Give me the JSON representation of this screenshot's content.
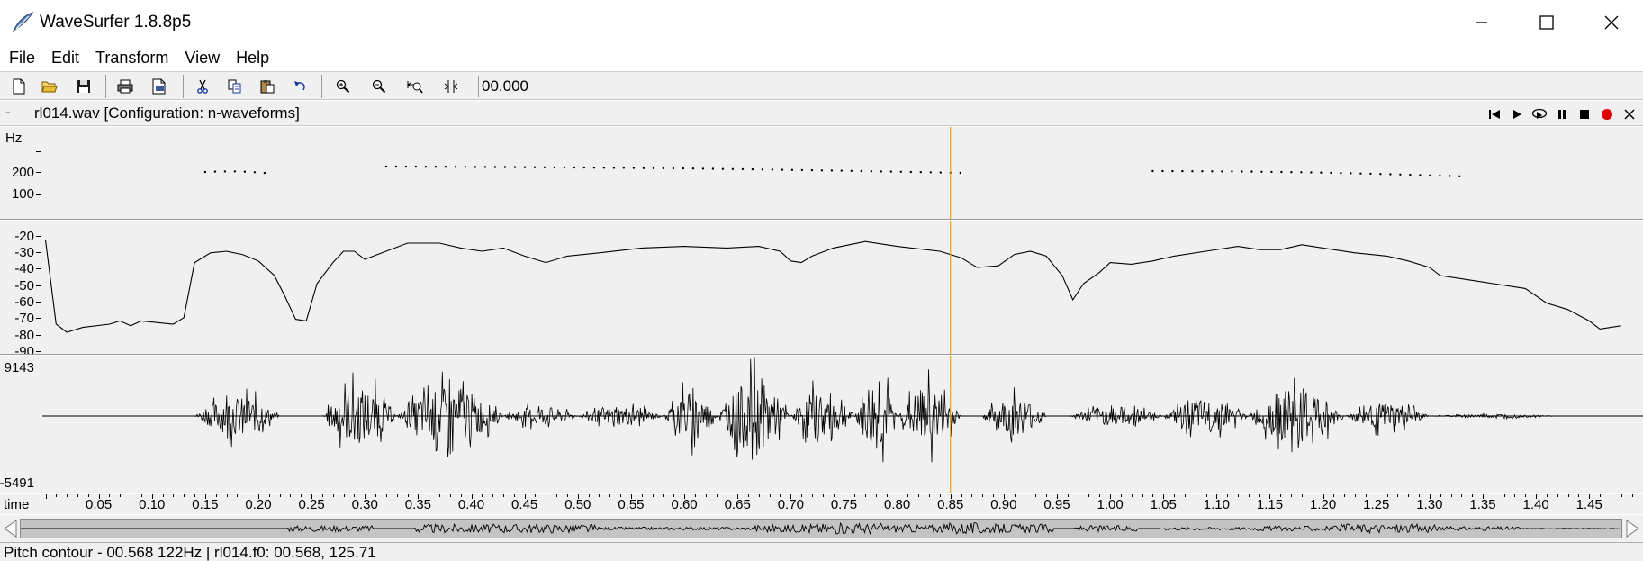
{
  "window": {
    "title": "WaveSurfer 1.8.8p5",
    "minimize_label": "",
    "maximize_label": "",
    "close_label": ""
  },
  "menu": [
    "File",
    "Edit",
    "Transform",
    "View",
    "Help"
  ],
  "toolbar": {
    "time_value": "00.000",
    "buttons": [
      "new-file",
      "open-folder",
      "save",
      "print",
      "print-setup",
      "cut",
      "copy",
      "paste",
      "undo",
      "zoom-in",
      "zoom-out",
      "zoom-to-selection",
      "zoom-all"
    ]
  },
  "file_header": {
    "collapse": "-",
    "title": "rl014.wav [Configuration: n-waveforms]",
    "transport": [
      "skip-to-start",
      "play",
      "play-loop",
      "pause",
      "stop",
      "record",
      "close"
    ]
  },
  "pitch_pane": {
    "unit": "Hz",
    "ticks": [
      "200",
      "100"
    ]
  },
  "energy_pane": {
    "ticks": [
      "-20",
      "-30",
      "-40",
      "-50",
      "-60",
      "-70",
      "-80",
      "-90"
    ]
  },
  "waveform_pane": {
    "max_label": "9143",
    "min_label": "-5491"
  },
  "time_axis": {
    "name": "time",
    "labels": [
      "0.05",
      "0.10",
      "0.15",
      "0.20",
      "0.25",
      "0.30",
      "0.35",
      "0.40",
      "0.45",
      "0.50",
      "0.55",
      "0.60",
      "0.65",
      "0.70",
      "0.75",
      "0.80",
      "0.85",
      "0.90",
      "0.95",
      "1.00",
      "1.05",
      "1.10",
      "1.15",
      "1.20",
      "1.25",
      "1.30",
      "1.35",
      "1.40",
      "1.45"
    ]
  },
  "cursor": {
    "time": 0.85,
    "color": "#e8a317"
  },
  "status": {
    "text": "Pitch contour - 00.568 122Hz  | rl014.f0: 00.568, 125.71"
  },
  "colors": {
    "panel_bg": "#f0f0f0",
    "record": "#e00000",
    "cursor": "#e8a317"
  }
}
